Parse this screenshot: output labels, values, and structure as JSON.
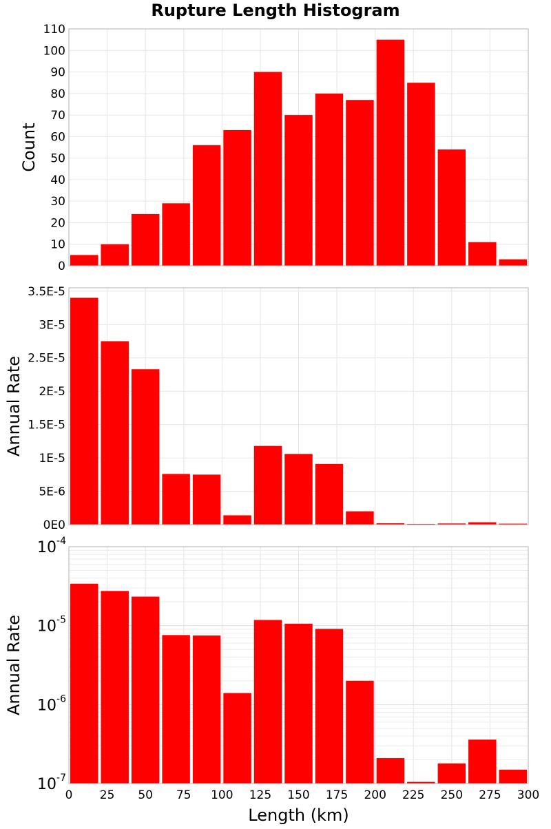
{
  "chart_data": [
    {
      "type": "bar",
      "title": "Rupture Length Histogram",
      "ylabel": "Count",
      "xlim": [
        0,
        300
      ],
      "ylim": [
        0,
        110
      ],
      "bin_width": 20,
      "yticks": [
        0,
        10,
        20,
        30,
        40,
        50,
        60,
        70,
        80,
        90,
        100,
        110
      ],
      "ytick_labels": [
        "0",
        "10",
        "20",
        "30",
        "40",
        "50",
        "60",
        "70",
        "80",
        "90",
        "100",
        "110"
      ],
      "x": [
        10,
        30,
        50,
        70,
        90,
        110,
        130,
        150,
        170,
        190,
        210,
        230,
        250,
        270,
        290
      ],
      "values": [
        5,
        10,
        24,
        29,
        56,
        63,
        90,
        70,
        80,
        77,
        105,
        85,
        54,
        11,
        3
      ],
      "bar_color": "#ff0000",
      "grid": true
    },
    {
      "type": "bar",
      "ylabel": "Annual Rate",
      "xlim": [
        0,
        300
      ],
      "ylim": [
        0,
        3.55e-05
      ],
      "bin_width": 20,
      "yticks": [
        0,
        5e-06,
        1e-05,
        1.5e-05,
        2e-05,
        2.5e-05,
        3e-05,
        3.5e-05
      ],
      "ytick_labels": [
        "0E0",
        "5E-6",
        "1E-5",
        "1.5E-5",
        "2E-5",
        "2.5E-5",
        "3E-5",
        "3.5E-5"
      ],
      "x": [
        10,
        30,
        50,
        70,
        90,
        110,
        130,
        150,
        170,
        190,
        210,
        230,
        250,
        270,
        290
      ],
      "values": [
        3.4e-05,
        2.75e-05,
        2.33e-05,
        7.6e-06,
        7.5e-06,
        1.4e-06,
        1.18e-05,
        1.06e-05,
        9.1e-06,
        2e-06,
        2.1e-07,
        1.05e-07,
        1.8e-07,
        3.6e-07,
        1.5e-07
      ],
      "bar_color": "#ff0000",
      "grid": true
    },
    {
      "type": "bar",
      "ylabel": "Annual Rate",
      "xlabel": "Length (km)",
      "y_scale": "log",
      "xlim": [
        0,
        300
      ],
      "ylim": [
        1e-07,
        0.0001
      ],
      "bin_width": 20,
      "xticks": [
        0,
        25,
        50,
        75,
        100,
        125,
        150,
        175,
        200,
        225,
        250,
        275,
        300
      ],
      "xtick_labels": [
        "0",
        "25",
        "50",
        "75",
        "100",
        "125",
        "150",
        "175",
        "200",
        "225",
        "250",
        "275",
        "300"
      ],
      "ytick_labels": [
        {
          "value": 1e-07,
          "base": "10",
          "exp": "-7"
        },
        {
          "value": 1e-06,
          "base": "10",
          "exp": "-6"
        },
        {
          "value": 1e-05,
          "base": "10",
          "exp": "-5"
        },
        {
          "value": 0.0001,
          "base": "10",
          "exp": "-4"
        }
      ],
      "x": [
        10,
        30,
        50,
        70,
        90,
        110,
        130,
        150,
        170,
        190,
        210,
        230,
        250,
        270,
        290
      ],
      "values": [
        3.4e-05,
        2.75e-05,
        2.33e-05,
        7.6e-06,
        7.5e-06,
        1.4e-06,
        1.18e-05,
        1.06e-05,
        9.1e-06,
        2e-06,
        2.1e-07,
        1.05e-07,
        1.8e-07,
        3.6e-07,
        1.5e-07
      ],
      "bar_color": "#ff0000",
      "grid": true
    }
  ]
}
